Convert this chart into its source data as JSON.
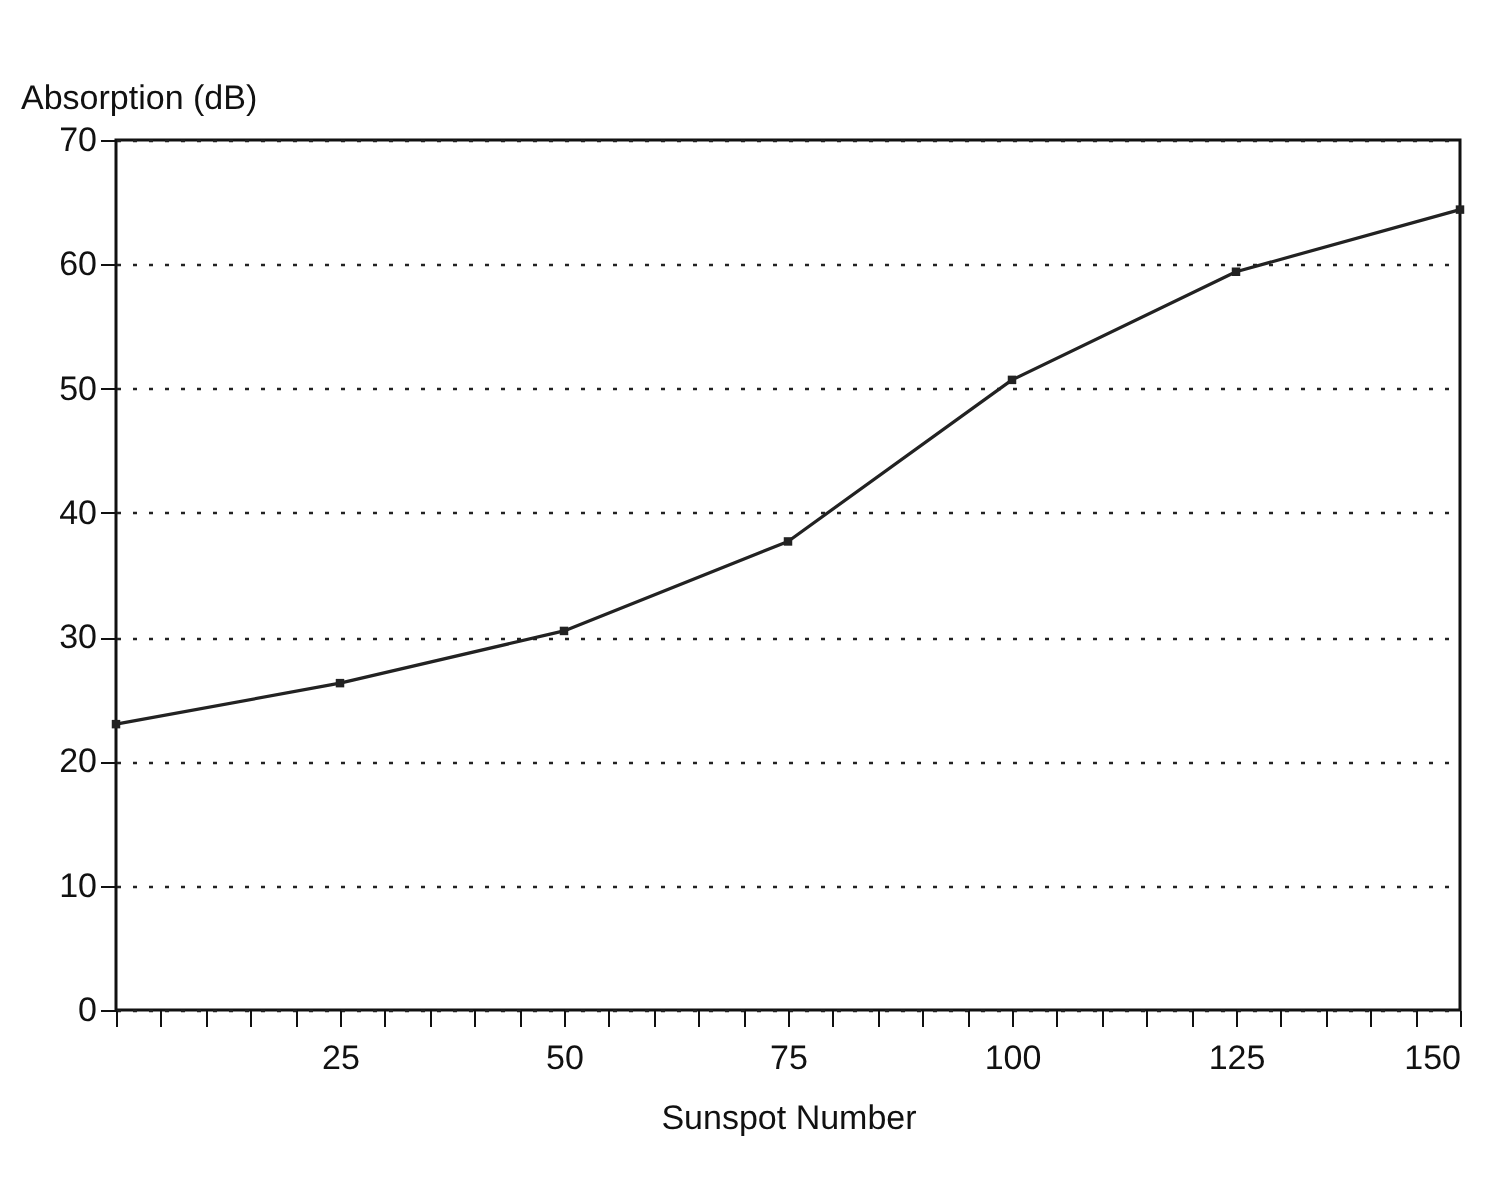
{
  "chart_data": {
    "type": "line",
    "xlabel": "Sunspot Number",
    "ylabel": "Absorption (dB)",
    "x": [
      0,
      25,
      50,
      75,
      100,
      125,
      150
    ],
    "series": [
      {
        "color": "#222222",
        "values": [
          23,
          26.3,
          30.5,
          37.7,
          50.7,
          59.4,
          64.4
        ]
      }
    ],
    "xlim": [
      0,
      150
    ],
    "xticks": [
      {
        "value": 0,
        "label": null
      },
      {
        "value": 5,
        "label": null
      },
      {
        "value": 10,
        "label": null
      },
      {
        "value": 15,
        "label": null
      },
      {
        "value": 20,
        "label": null
      },
      25,
      {
        "value": 30,
        "label": null
      },
      {
        "value": 35,
        "label": null
      },
      {
        "value": 40,
        "label": null
      },
      {
        "value": 45,
        "label": null
      },
      50,
      {
        "value": 55,
        "label": null
      },
      {
        "value": 60,
        "label": null
      },
      {
        "value": 65,
        "label": null
      },
      {
        "value": 70,
        "label": null
      },
      75,
      {
        "value": 80,
        "label": null
      },
      {
        "value": 85,
        "label": null
      },
      {
        "value": 90,
        "label": null
      },
      {
        "value": 95,
        "label": null
      },
      100,
      {
        "value": 105,
        "label": null
      },
      {
        "value": 110,
        "label": null
      },
      {
        "value": 115,
        "label": null
      },
      {
        "value": 120,
        "label": null
      },
      125,
      {
        "value": 130,
        "label": null
      },
      {
        "value": 135,
        "label": null
      },
      {
        "value": 140,
        "label": null
      },
      {
        "value": 145,
        "label": null
      },
      150
    ],
    "ylim": [
      0,
      70
    ],
    "yticks": [
      0,
      10,
      20,
      30,
      40,
      50,
      60,
      70
    ],
    "grid": "y",
    "marker": "square",
    "line_style": "solid"
  }
}
